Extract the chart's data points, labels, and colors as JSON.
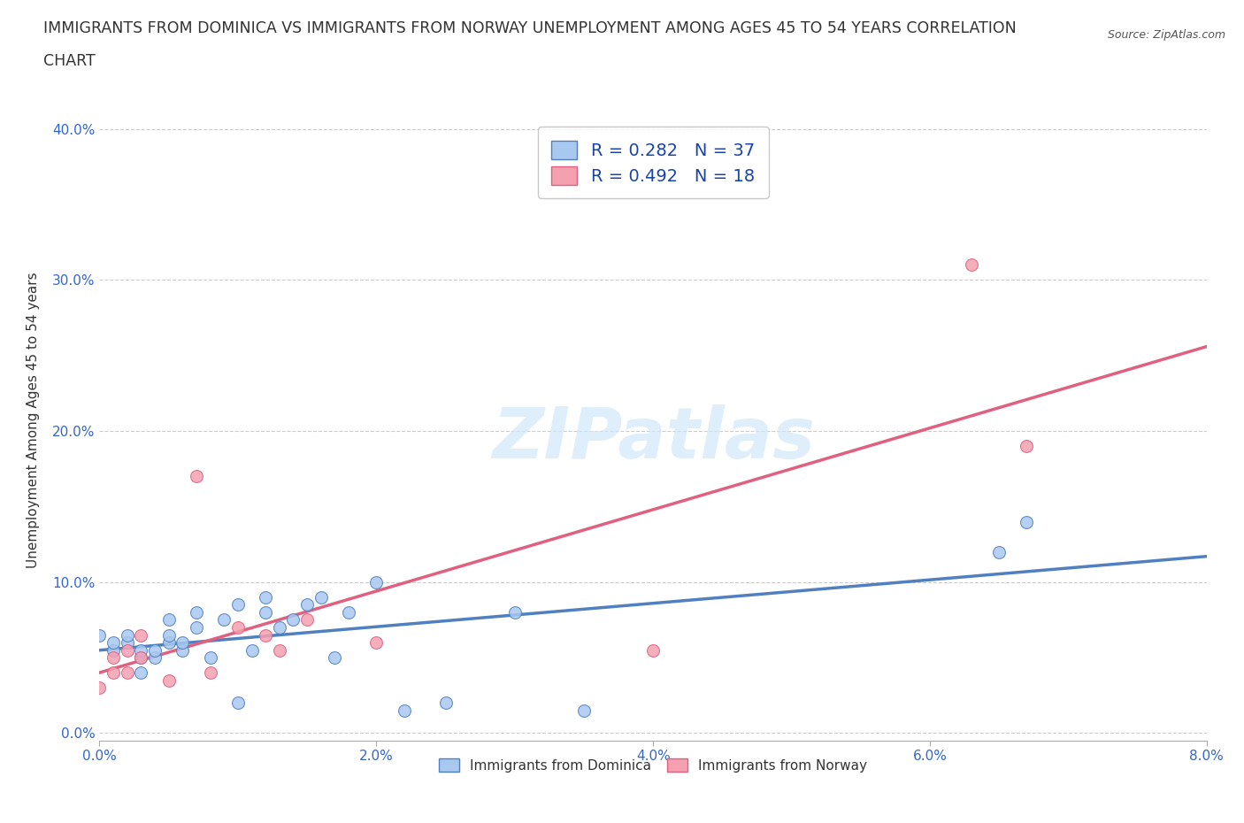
{
  "title_line1": "IMMIGRANTS FROM DOMINICA VS IMMIGRANTS FROM NORWAY UNEMPLOYMENT AMONG AGES 45 TO 54 YEARS CORRELATION",
  "title_line2": "CHART",
  "source": "Source: ZipAtlas.com",
  "xlabel_ticks": [
    "0.0%",
    "2.0%",
    "4.0%",
    "6.0%",
    "8.0%"
  ],
  "ylabel_ticks": [
    "0.0%",
    "10.0%",
    "20.0%",
    "30.0%",
    "40.0%"
  ],
  "xlim": [
    0.0,
    0.08
  ],
  "ylim": [
    -0.005,
    0.42
  ],
  "dominica_scatter_x": [
    0.0,
    0.001,
    0.001,
    0.002,
    0.002,
    0.003,
    0.003,
    0.003,
    0.004,
    0.004,
    0.005,
    0.005,
    0.005,
    0.006,
    0.006,
    0.007,
    0.007,
    0.008,
    0.009,
    0.01,
    0.01,
    0.011,
    0.012,
    0.012,
    0.013,
    0.014,
    0.015,
    0.016,
    0.017,
    0.018,
    0.02,
    0.022,
    0.025,
    0.03,
    0.035,
    0.065,
    0.067
  ],
  "dominica_scatter_y": [
    0.065,
    0.055,
    0.06,
    0.06,
    0.065,
    0.04,
    0.05,
    0.055,
    0.05,
    0.055,
    0.06,
    0.065,
    0.075,
    0.055,
    0.06,
    0.07,
    0.08,
    0.05,
    0.075,
    0.02,
    0.085,
    0.055,
    0.08,
    0.09,
    0.07,
    0.075,
    0.085,
    0.09,
    0.05,
    0.08,
    0.1,
    0.015,
    0.02,
    0.08,
    0.015,
    0.12,
    0.14
  ],
  "norway_scatter_x": [
    0.0,
    0.001,
    0.001,
    0.002,
    0.002,
    0.003,
    0.003,
    0.005,
    0.007,
    0.008,
    0.01,
    0.012,
    0.013,
    0.015,
    0.02,
    0.04,
    0.063,
    0.067
  ],
  "norway_scatter_y": [
    0.03,
    0.04,
    0.05,
    0.04,
    0.055,
    0.05,
    0.065,
    0.035,
    0.17,
    0.04,
    0.07,
    0.065,
    0.055,
    0.075,
    0.06,
    0.055,
    0.31,
    0.19
  ],
  "dominica_color": "#a8c8f0",
  "norway_color": "#f4a0b0",
  "dominica_line_color": "#5080c0",
  "norway_line_color": "#e06080",
  "dominica_R": 0.282,
  "dominica_N": 37,
  "norway_R": 0.492,
  "norway_N": 18,
  "watermark": "ZIPatlas",
  "legend_dominica": "Immigrants from Dominica",
  "legend_norway": "Immigrants from Norway",
  "grid_color": "#cccccc",
  "background_color": "#ffffff",
  "title_fontsize": 13,
  "label_fontsize": 11
}
